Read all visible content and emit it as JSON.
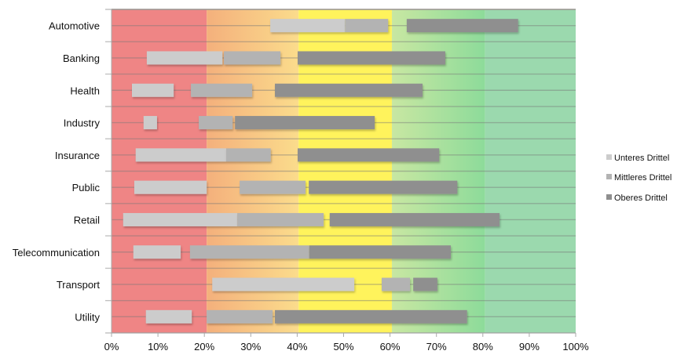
{
  "chart_data": {
    "type": "bar",
    "orientation": "horizontal-floating",
    "title": "",
    "xlabel": "",
    "ylabel": "",
    "xlim": [
      0,
      100
    ],
    "x_tick_labels": [
      "0%",
      "10%",
      "20%",
      "30%",
      "40%",
      "50%",
      "60%",
      "70%",
      "80%",
      "90%",
      "100%"
    ],
    "x_ticks": [
      0,
      10,
      20,
      30,
      40,
      50,
      60,
      70,
      80,
      90,
      100
    ],
    "grid": true,
    "legend_position": "right",
    "categories": [
      "Automotive",
      "Banking",
      "Health",
      "Industry",
      "Insurance",
      "Public",
      "Retail",
      "Telecommunication",
      "Transport",
      "Utility"
    ],
    "series": [
      {
        "name": "Unteres Drittel",
        "color": "#cccccc",
        "ranges": [
          [
            34.2,
            50.3
          ],
          [
            7.6,
            23.9
          ],
          [
            4.4,
            13.4
          ],
          [
            6.9,
            9.8
          ],
          [
            5.2,
            24.7
          ],
          [
            4.9,
            20.5
          ],
          [
            2.5,
            27.1
          ],
          [
            4.7,
            14.9
          ],
          [
            21.7,
            52.3
          ],
          [
            7.4,
            17.3
          ]
        ]
      },
      {
        "name": "Mittleres Drittel",
        "color": "#b3b3b3",
        "ranges": [
          [
            50.3,
            59.6
          ],
          [
            24.2,
            36.4
          ],
          [
            17.1,
            30.3
          ],
          [
            18.8,
            26.1
          ],
          [
            24.7,
            34.3
          ],
          [
            27.6,
            41.8
          ],
          [
            27.1,
            45.7
          ],
          [
            16.9,
            42.6
          ],
          [
            58.2,
            64.3
          ],
          [
            20.5,
            34.7
          ]
        ]
      },
      {
        "name": "Oberes Drittel",
        "color": "#8f8f8f",
        "ranges": [
          [
            63.6,
            87.6
          ],
          [
            40.1,
            71.9
          ],
          [
            35.2,
            67.0
          ],
          [
            26.6,
            56.7
          ],
          [
            40.1,
            70.6
          ],
          [
            42.5,
            74.5
          ],
          [
            47.0,
            83.6
          ],
          [
            42.6,
            73.1
          ],
          [
            65.0,
            70.2
          ],
          [
            35.2,
            76.6
          ]
        ]
      }
    ],
    "background_zones": [
      {
        "from": 0,
        "to": 20.5,
        "color": "#ef8585"
      },
      {
        "from": 20.5,
        "to": 40.3,
        "color_start": "#f4b07c",
        "color_end": "#fbdc8c"
      },
      {
        "from": 40.3,
        "to": 60.4,
        "color": "#fff35c"
      },
      {
        "from": 60.4,
        "to": 80.5,
        "color_start": "#c8e7a2",
        "color_end": "#8ddb9a"
      },
      {
        "from": 80.5,
        "to": 100,
        "color": "#9bd9ae"
      }
    ]
  }
}
